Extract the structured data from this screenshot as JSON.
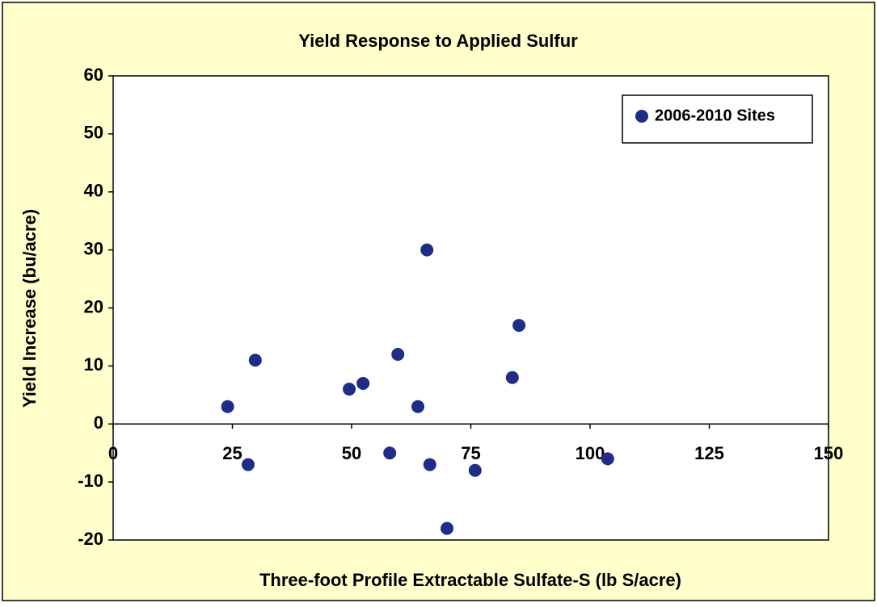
{
  "chart_data": {
    "type": "scatter",
    "title": "Yield Response to Applied Sulfur",
    "xlabel": "Three-foot Profile Extractable Sulfate-S (lb S/acre)",
    "ylabel": "Yield Increase (bu/acre)",
    "xlim": [
      0,
      150
    ],
    "xticks": [
      0,
      25,
      50,
      75,
      100,
      125,
      150
    ],
    "ylim": [
      -20,
      60
    ],
    "yticks": [
      -20,
      -10,
      0,
      10,
      20,
      30,
      40,
      50,
      60
    ],
    "legend": "upper right",
    "series": [
      {
        "name": "2006-2010 Sites",
        "color": "#1f2d87",
        "x": [
          24,
          28.3,
          29.8,
          49.5,
          52.4,
          58,
          59.7,
          63.9,
          65.8,
          66.4,
          70,
          75.9,
          83.7,
          85.1,
          103.7
        ],
        "values": [
          3,
          -7,
          11,
          6,
          7,
          -5,
          12,
          3,
          30,
          -7,
          -18,
          -8,
          8,
          17,
          -6
        ]
      }
    ]
  }
}
